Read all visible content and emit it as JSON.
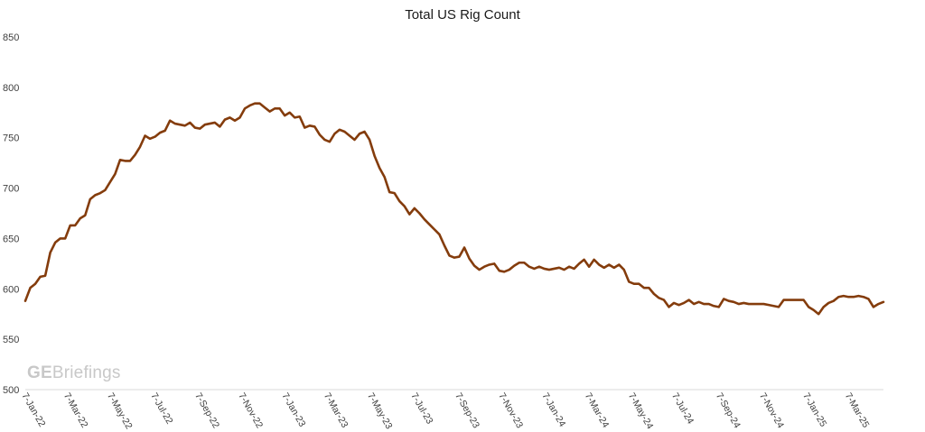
{
  "chart_data": {
    "type": "line",
    "title": "Total US Rig Count",
    "xlabel": "",
    "ylabel": "",
    "ylim": [
      500,
      850
    ],
    "yticks": [
      500,
      550,
      600,
      650,
      700,
      750,
      800,
      850
    ],
    "grid": false,
    "legend": "none",
    "x_tick_labels": [
      "7-Jan-22",
      "7-Mar-22",
      "7-May-22",
      "7-Jul-22",
      "7-Sep-22",
      "7-Nov-22",
      "7-Jan-23",
      "7-Mar-23",
      "7-May-23",
      "7-Jul-23",
      "7-Sep-23",
      "7-Nov-23",
      "7-Jan-24",
      "7-Mar-24",
      "7-May-24",
      "7-Jul-24",
      "7-Sep-24",
      "7-Nov-24",
      "7-Jan-25",
      "7-Mar-25"
    ],
    "series": [
      {
        "color": "#843c0c",
        "x_start": "7-Jan-22",
        "x_end": "4-Apr-25",
        "frequency": "weekly",
        "values": [
          588,
          601,
          605,
          612,
          613,
          636,
          646,
          650,
          650,
          663,
          663,
          670,
          673,
          689,
          693,
          695,
          698,
          706,
          714,
          728,
          727,
          727,
          733,
          741,
          752,
          749,
          751,
          755,
          757,
          767,
          764,
          763,
          762,
          765,
          760,
          759,
          763,
          764,
          765,
          761,
          768,
          770,
          767,
          770,
          779,
          782,
          784,
          784,
          780,
          776,
          779,
          779,
          772,
          775,
          770,
          771,
          760,
          762,
          761,
          753,
          748,
          746,
          754,
          758,
          756,
          752,
          748,
          754,
          756,
          748,
          732,
          720,
          711,
          696,
          695,
          687,
          682,
          674,
          680,
          675,
          669,
          664,
          659,
          654,
          643,
          633,
          631,
          632,
          641,
          630,
          623,
          619,
          622,
          624,
          625,
          618,
          617,
          619,
          623,
          626,
          626,
          622,
          620,
          622,
          620,
          619,
          620,
          621,
          619,
          622,
          620,
          625,
          629,
          622,
          629,
          624,
          621,
          624,
          621,
          624,
          619,
          607,
          605,
          605,
          601,
          601,
          595,
          591,
          589,
          582,
          586,
          584,
          586,
          589,
          585,
          587,
          585,
          585,
          583,
          582,
          590,
          588,
          587,
          585,
          586,
          585,
          585,
          585,
          585,
          584,
          583,
          582,
          589,
          589,
          589,
          589,
          589,
          582,
          579,
          575,
          582,
          586,
          588,
          592,
          593,
          592,
          592,
          593,
          592,
          590,
          582,
          585,
          587
        ]
      }
    ]
  },
  "watermark": {
    "brand_bold": "GE",
    "brand_rest": "Briefings"
  }
}
